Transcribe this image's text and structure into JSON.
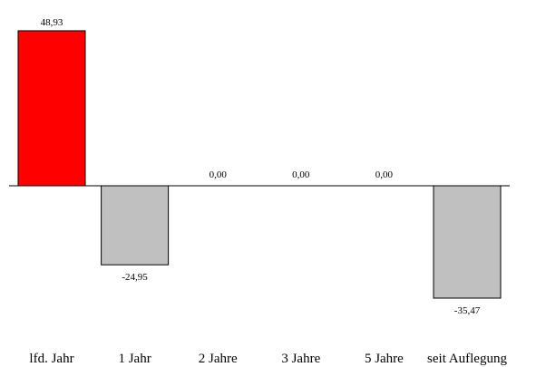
{
  "chart_data": {
    "type": "bar",
    "title": "",
    "xlabel": "",
    "ylabel": "",
    "categories": [
      "lfd. Jahr",
      "1 Jahr",
      "2 Jahre",
      "3 Jahre",
      "5 Jahre",
      "seit Auflegung"
    ],
    "values": [
      48.93,
      -24.95,
      0.0,
      0.0,
      0.0,
      -35.47
    ],
    "value_labels": [
      "48,93",
      "-24,95",
      "0,00",
      "0,00",
      "0,00",
      "-35,47"
    ],
    "ylim": [
      -35.47,
      48.93
    ],
    "grid": false,
    "legend": "none",
    "colors": {
      "highlight": "#ff0000",
      "default": "#c0c0c0",
      "outline": "#000000",
      "axis": "#000000"
    },
    "highlight_index": 0
  }
}
